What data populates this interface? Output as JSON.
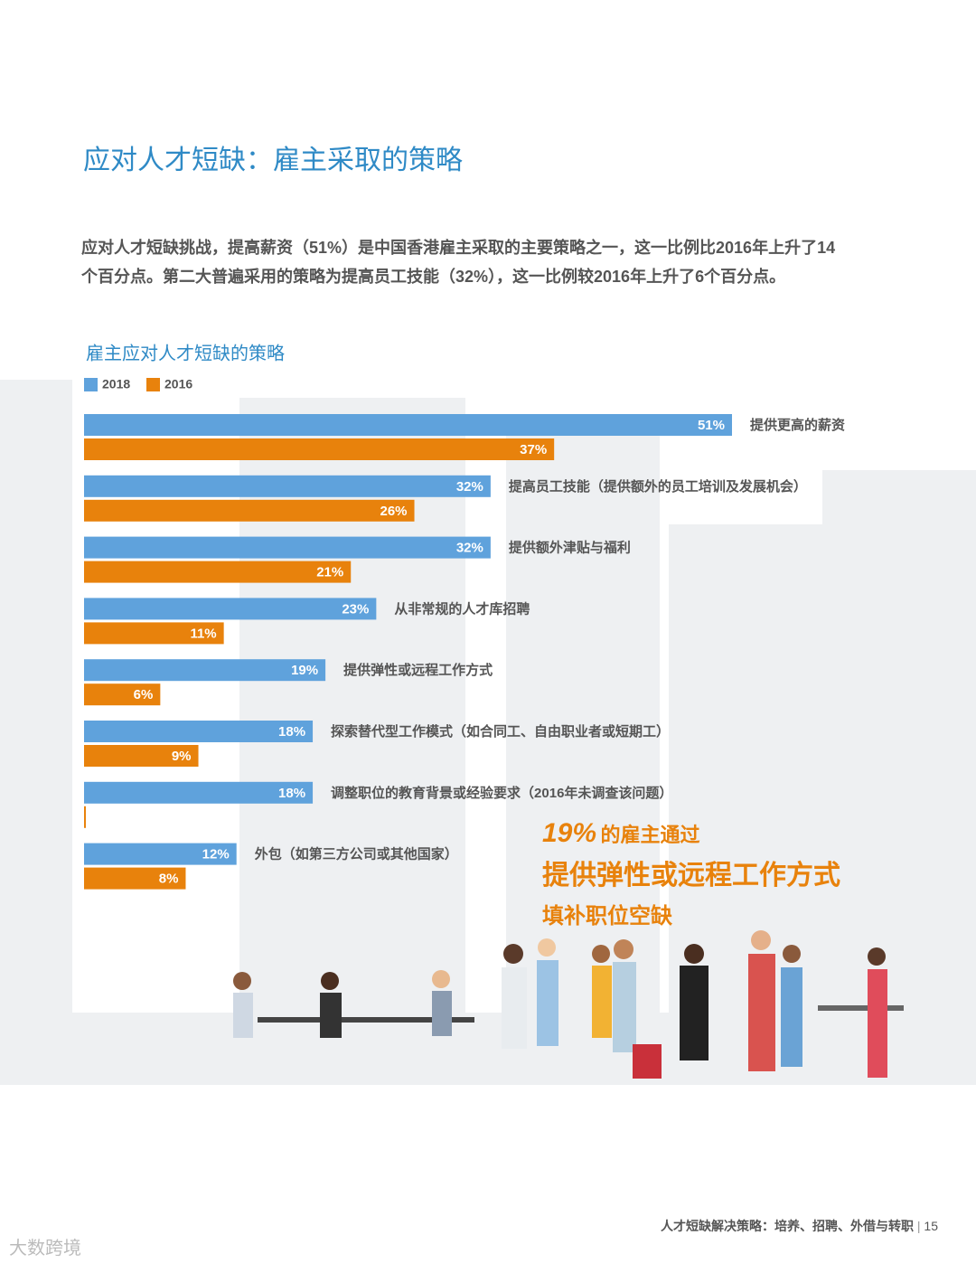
{
  "page": {
    "title": "应对人才短缺：雇主采取的策略",
    "intro": "应对人才短缺挑战，提高薪资（51%）是中国香港雇主采取的主要策略之一，这一比例比2016年上升了14个百分点。第二大普遍采用的策略为提高员工技能（32%），这一比例较2016年上升了6个百分点。",
    "callout": {
      "figure": "19%",
      "line1": "的雇主通过",
      "line2": "提供弹性或远程工作方式",
      "line3": "填补职位空缺"
    },
    "footer": {
      "text": "人才短缺解决策略：培养、招聘、外借与转职",
      "page_number": "15"
    },
    "watermark": "大数跨境"
  },
  "chart_data": {
    "type": "bar",
    "orientation": "horizontal",
    "title": "雇主应对人才短缺的策略",
    "categories": [
      "提供更高的薪资",
      "提高员工技能（提供额外的员工培训及发展机会）",
      "提供额外津贴与福利",
      "从非常规的人才库招聘",
      "提供弹性或远程工作方式",
      "探索替代型工作模式（如合同工、自由职业者或短期工）",
      "调整职位的教育背景或经验要求（2016年未调查该问题）",
      "外包（如第三方公司或其他国家）"
    ],
    "series": [
      {
        "name": "2018",
        "color": "#5fa2dc",
        "values": [
          51,
          32,
          32,
          23,
          19,
          18,
          18,
          12
        ],
        "value_labels": [
          "51%",
          "32%",
          "32%",
          "23%",
          "19%",
          "18%",
          "18%",
          "12%"
        ]
      },
      {
        "name": "2016",
        "color": "#e8820c",
        "values": [
          37,
          26,
          21,
          11,
          6,
          9,
          null,
          8
        ],
        "value_labels": [
          "37%",
          "26%",
          "21%",
          "11%",
          "6%",
          "9%",
          null,
          "8%"
        ]
      }
    ]
  }
}
